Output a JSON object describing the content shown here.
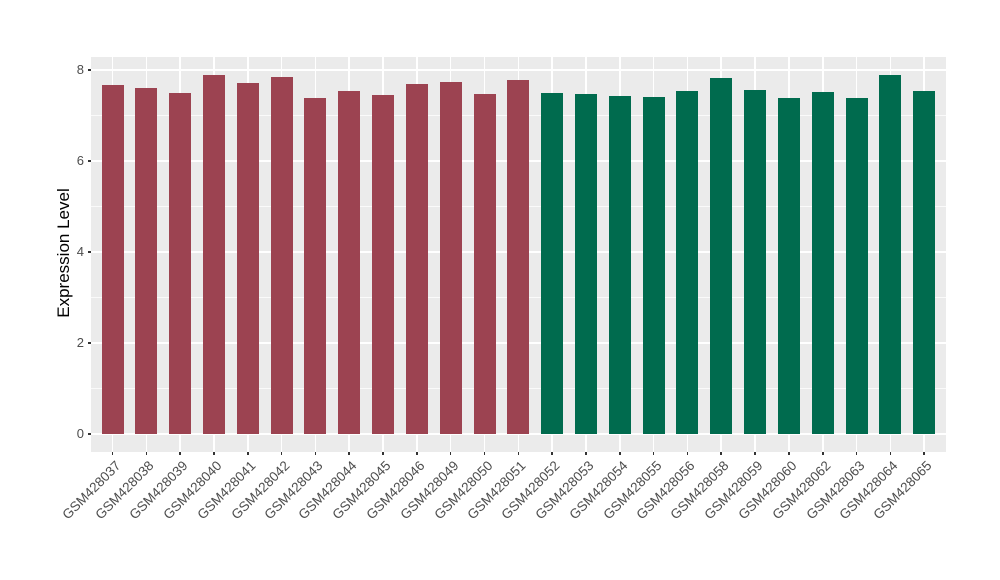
{
  "chart_data": {
    "type": "bar",
    "title": "",
    "xlabel": "",
    "ylabel": "Expression Level",
    "y_axis": {
      "tick_labels": [
        "0",
        "2",
        "4",
        "6",
        "8"
      ],
      "ticks": [
        0,
        2,
        4,
        6,
        8
      ],
      "minor_ticks": [
        1,
        3,
        5,
        7
      ],
      "ylim": [
        0,
        8.3
      ]
    },
    "grid": true,
    "legend": "none",
    "panel_background": "#EBEBEB",
    "gridline_color": "#FFFFFF",
    "series": [
      {
        "color": "#9C4351",
        "bars": [
          {
            "label": "GSM428037",
            "value": 7.67
          },
          {
            "label": "GSM428038",
            "value": 7.61
          },
          {
            "label": "GSM428039",
            "value": 7.5
          },
          {
            "label": "GSM428040",
            "value": 7.9
          },
          {
            "label": "GSM428041",
            "value": 7.71
          },
          {
            "label": "GSM428042",
            "value": 7.85
          },
          {
            "label": "GSM428043",
            "value": 7.38
          },
          {
            "label": "GSM428044",
            "value": 7.55
          },
          {
            "label": "GSM428045",
            "value": 7.46
          },
          {
            "label": "GSM428046",
            "value": 7.7
          },
          {
            "label": "GSM428049",
            "value": 7.75
          },
          {
            "label": "GSM428050",
            "value": 7.48
          },
          {
            "label": "GSM428051",
            "value": 7.78
          }
        ]
      },
      {
        "color": "#006B4E",
        "bars": [
          {
            "label": "GSM428052",
            "value": 7.5
          },
          {
            "label": "GSM428053",
            "value": 7.48
          },
          {
            "label": "GSM428054",
            "value": 7.43
          },
          {
            "label": "GSM428055",
            "value": 7.42
          },
          {
            "label": "GSM428056",
            "value": 7.54
          },
          {
            "label": "GSM428058",
            "value": 7.82
          },
          {
            "label": "GSM428059",
            "value": 7.57
          },
          {
            "label": "GSM428060",
            "value": 7.39
          },
          {
            "label": "GSM428062",
            "value": 7.52
          },
          {
            "label": "GSM428063",
            "value": 7.4
          },
          {
            "label": "GSM428064",
            "value": 7.89
          },
          {
            "label": "GSM428065",
            "value": 7.55
          }
        ]
      }
    ]
  }
}
